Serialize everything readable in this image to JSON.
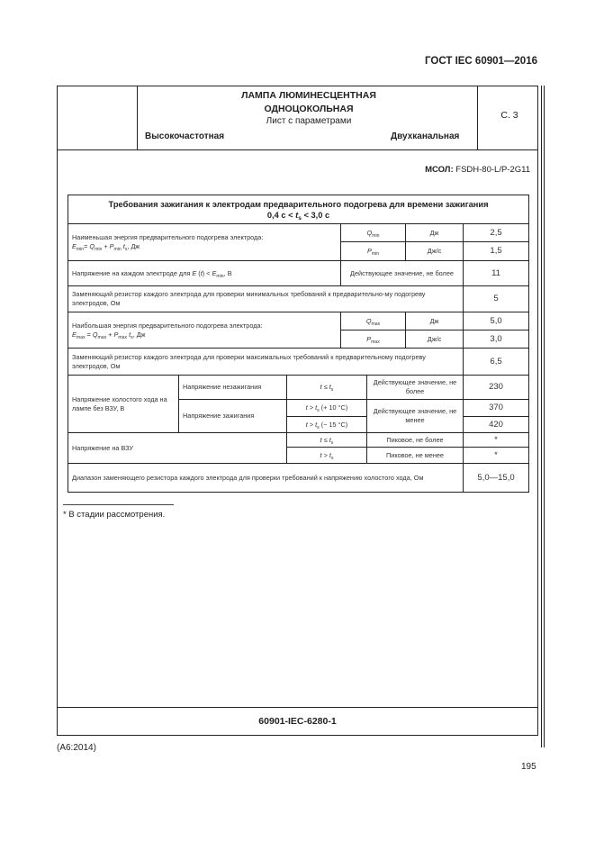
{
  "header": {
    "standard": "ГОСТ IEC 60901—2016",
    "title_line1": "ЛАМПА ЛЮМИНЕСЦЕНТНАЯ",
    "title_line2": "ОДНОЦОКОЛЬНАЯ",
    "subtitle": "Лист с параметрами",
    "type_left": "Высокочастотная",
    "type_right": "Двухканальная",
    "sheet": "С. 3"
  },
  "msol": {
    "label": "МСОЛ:",
    "value": "FSDH-80-L/P-2G11"
  },
  "table": {
    "title": [
      {
        "t": "Требования зажигания к электродам предварительного подогрева для времени зажигания"
      },
      {
        "br": true
      },
      {
        "t": "0,4 с < "
      },
      {
        "t": "t",
        "i": true,
        "sub": "s"
      },
      {
        "t": " < 3,0 с"
      }
    ],
    "emin_label": [
      {
        "t": "Наименьшая энергия предварительного подогрева электрода:"
      },
      {
        "br": true
      },
      {
        "t": "E",
        "i": true,
        "sub": "min"
      },
      {
        "t": "= "
      },
      {
        "t": "Q",
        "i": true,
        "sub": "min"
      },
      {
        "t": " + "
      },
      {
        "t": "P",
        "i": true,
        "sub": "min"
      },
      {
        "t": " "
      },
      {
        "t": "t",
        "i": true,
        "sub": "s"
      },
      {
        "t": ", Дж"
      }
    ],
    "qmin": [
      {
        "t": "Q",
        "i": true,
        "sub": "min"
      }
    ],
    "qmin_unit": "Дж",
    "qmin_value": "2,5",
    "pmin": [
      {
        "t": "P",
        "i": true,
        "sub": "min"
      }
    ],
    "pmin_unit": "Дж/с",
    "pmin_value": "1,5",
    "electrode_voltage_label": [
      {
        "t": "Напряжение на каждом электроде для "
      },
      {
        "t": "E",
        "i": true
      },
      {
        "t": " ("
      },
      {
        "t": "t",
        "i": true
      },
      {
        "t": ") < "
      },
      {
        "t": "E",
        "i": true,
        "sub": "min"
      },
      {
        "t": ", В"
      }
    ],
    "electrode_voltage_desc": "Действующее значение, не более",
    "electrode_voltage_value": "11",
    "resistor_min_label": "Заменяющий резистор каждого электрода для проверки минимальных требований к предварительно-му подогреву электродов, Ом",
    "resistor_min_value": "5",
    "emax_label": [
      {
        "t": "Наибольшая энергия предварительного подогрева электрода:"
      },
      {
        "br": true
      },
      {
        "t": "E",
        "i": true,
        "sub": "max"
      },
      {
        "t": " = "
      },
      {
        "t": "Q",
        "i": true,
        "sub": "max"
      },
      {
        "t": " + "
      },
      {
        "t": "P",
        "i": true,
        "sub": "max"
      },
      {
        "t": " "
      },
      {
        "t": "t",
        "i": true,
        "sub": "s"
      },
      {
        "t": ", Дж"
      }
    ],
    "qmax": [
      {
        "t": "Q",
        "i": true,
        "sub": "max"
      }
    ],
    "qmax_unit": "Дж",
    "qmax_value": "5,0",
    "pmax": [
      {
        "t": "P",
        "i": true,
        "sub": "max"
      }
    ],
    "pmax_unit": "Дж/с",
    "pmax_value": "3,0",
    "resistor_max_label": "Заменяющий резистор каждого электрода для проверки максимальных требований к предварительному подогреву электродов, Ом",
    "resistor_max_value": "6,5",
    "ocv_label": "Напряжение холостого хода на лампе без ВЗУ, В",
    "non_ignition_label": "Напряжение незажигания",
    "non_ignition_cond": [
      {
        "t": "t",
        "i": true
      },
      {
        "t": " ≤ "
      },
      {
        "t": "t",
        "i": true,
        "sub": "s"
      }
    ],
    "non_ignition_desc": "Действующее значение, не более",
    "non_ignition_value": "230",
    "ignition_label": "Напряжение зажигания",
    "ignition_cond_1": [
      {
        "t": "t",
        "i": true
      },
      {
        "t": " > "
      },
      {
        "t": "t",
        "i": true,
        "sub": "s"
      },
      {
        "t": " (+ 10 °C)"
      }
    ],
    "ignition_cond_2": [
      {
        "t": "t",
        "i": true
      },
      {
        "t": " > "
      },
      {
        "t": "t",
        "i": true,
        "sub": "s"
      },
      {
        "t": " (− 15 °C)"
      }
    ],
    "ignition_desc": "Действующее значение, не менее",
    "ignition_value_1": "370",
    "ignition_value_2": "420",
    "vzu_label": "Напряжение на ВЗУ",
    "vzu_cond_1": [
      {
        "t": "t",
        "i": true
      },
      {
        "t": " ≤ "
      },
      {
        "t": "t",
        "i": true,
        "sub": "s"
      }
    ],
    "vzu_desc_1": "Пиковое, не более",
    "vzu_value_1": "*",
    "vzu_cond_2": [
      {
        "t": "t",
        "i": true
      },
      {
        "t": " > "
      },
      {
        "t": "t",
        "i": true,
        "sub": "s"
      }
    ],
    "vzu_desc_2": "Пиковое, не менее",
    "vzu_value_2": "*",
    "range_label": "Диапазон заменяющего резистора каждого электрода для проверки требований к напряжению холостого хода, Ом",
    "range_value": "5,0—15,0"
  },
  "footnote": "* В стадии рассмотрения.",
  "sheet_code": "60901-IEC-6280-1",
  "amendment": "(A6:2014)",
  "page_number": "195"
}
